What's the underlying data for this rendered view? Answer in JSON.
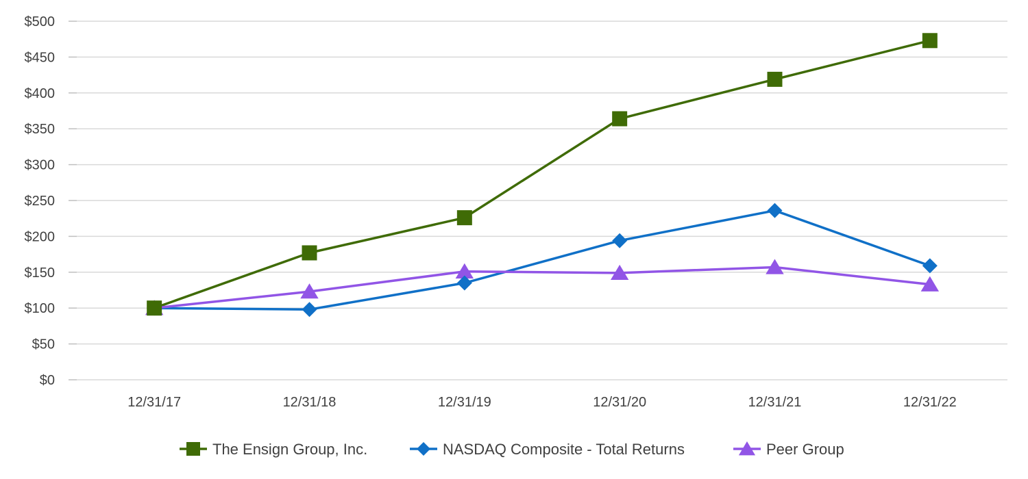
{
  "chart_data": {
    "type": "line",
    "title": "",
    "xlabel": "",
    "ylabel": "",
    "categories": [
      "12/31/17",
      "12/31/18",
      "12/31/19",
      "12/31/20",
      "12/31/21",
      "12/31/22"
    ],
    "ylim": [
      0,
      500
    ],
    "ytick_values": [
      0,
      50,
      100,
      150,
      200,
      250,
      300,
      350,
      400,
      450,
      500
    ],
    "ytick_labels": [
      "$0",
      "$50",
      "$100",
      "$150",
      "$200",
      "$250",
      "$300",
      "$350",
      "$400",
      "$450",
      "$500"
    ],
    "grid": true,
    "legend_position": "bottom",
    "series": [
      {
        "name": "The Ensign Group, Inc.",
        "marker": "square",
        "color": "#3f6b06",
        "values": [
          100,
          177,
          226,
          364,
          419,
          473
        ]
      },
      {
        "name": "NASDAQ Composite - Total Returns",
        "marker": "diamond",
        "color": "#1070c7",
        "values": [
          100,
          98,
          135,
          194,
          236,
          159
        ]
      },
      {
        "name": "Peer Group",
        "marker": "triangle",
        "color": "#9155e6",
        "values": [
          100,
          123,
          151,
          149,
          157,
          133
        ]
      }
    ]
  }
}
